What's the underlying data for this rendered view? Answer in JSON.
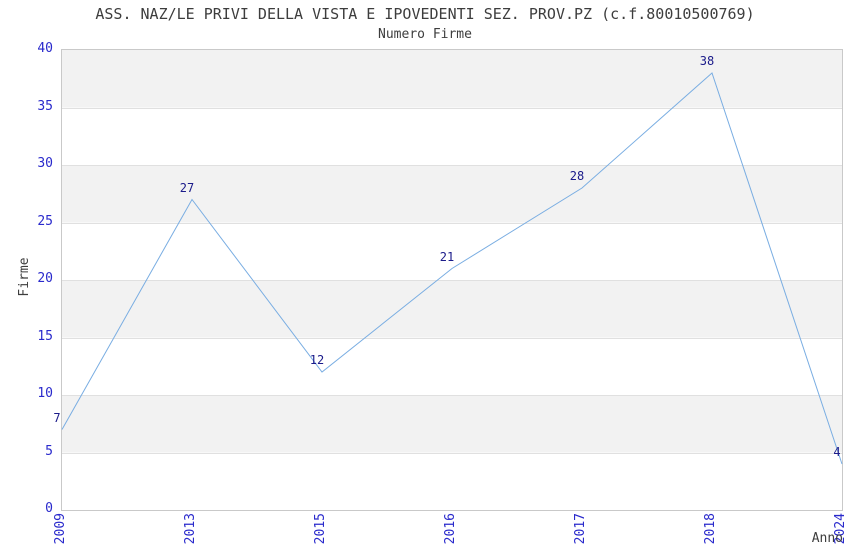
{
  "chart_data": {
    "type": "line",
    "title": "ASS. NAZ/LE PRIVI DELLA VISTA E IPOVEDENTI SEZ. PROV.PZ (c.f.80010500769)",
    "subtitle": "Numero Firme",
    "xlabel": "Anno",
    "ylabel": "Firme",
    "categories": [
      "2009",
      "2013",
      "2015",
      "2016",
      "2017",
      "2018",
      "2024"
    ],
    "values": [
      7,
      27,
      12,
      21,
      28,
      38,
      4
    ],
    "yticks": [
      0,
      5,
      10,
      15,
      20,
      25,
      30,
      35,
      40
    ],
    "ylim": [
      0,
      40
    ],
    "grid": "horizontal-bands-alternating",
    "legend_position": "none",
    "colors": {
      "line": "#79ade2",
      "data_label": "#1b1b8a",
      "tick_label": "#2a2acc",
      "axis_text": "#3d3d3d",
      "band": "#f2f2f2",
      "band_alt": "#ffffff",
      "gridline": "#e0e0e0",
      "plot_border": "#c9c9c9"
    }
  }
}
